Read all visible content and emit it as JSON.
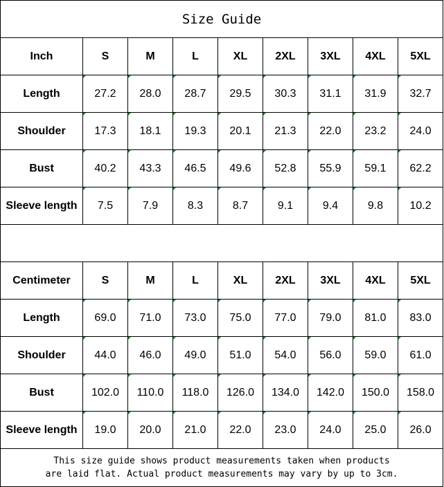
{
  "title": "Size Guide",
  "sizes": [
    "S",
    "M",
    "L",
    "XL",
    "2XL",
    "3XL",
    "4XL",
    "5XL"
  ],
  "inch": {
    "unit_label": "Inch",
    "rows": [
      {
        "label": "Length",
        "values": [
          "27.2",
          "28.0",
          "28.7",
          "29.5",
          "30.3",
          "31.1",
          "31.9",
          "32.7"
        ]
      },
      {
        "label": "Shoulder",
        "values": [
          "17.3",
          "18.1",
          "19.3",
          "20.1",
          "21.3",
          "22.0",
          "23.2",
          "24.0"
        ]
      },
      {
        "label": "Bust",
        "values": [
          "40.2",
          "43.3",
          "46.5",
          "49.6",
          "52.8",
          "55.9",
          "59.1",
          "62.2"
        ]
      },
      {
        "label": "Sleeve length",
        "values": [
          "7.5",
          "7.9",
          "8.3",
          "8.7",
          "9.1",
          "9.4",
          "9.8",
          "10.2"
        ]
      }
    ]
  },
  "cm": {
    "unit_label": "Centimeter",
    "rows": [
      {
        "label": "Length",
        "values": [
          "69.0",
          "71.0",
          "73.0",
          "75.0",
          "77.0",
          "79.0",
          "81.0",
          "83.0"
        ]
      },
      {
        "label": "Shoulder",
        "values": [
          "44.0",
          "46.0",
          "49.0",
          "51.0",
          "54.0",
          "56.0",
          "59.0",
          "61.0"
        ]
      },
      {
        "label": "Bust",
        "values": [
          "102.0",
          "110.0",
          "118.0",
          "126.0",
          "134.0",
          "142.0",
          "150.0",
          "158.0"
        ]
      },
      {
        "label": "Sleeve length",
        "values": [
          "19.0",
          "20.0",
          "21.0",
          "22.0",
          "23.0",
          "24.0",
          "25.0",
          "26.0"
        ]
      }
    ]
  },
  "footer": {
    "line1": "This size guide shows product measurements taken when products",
    "line2": "are laid flat. Actual product measurements may vary by up to 3cm."
  }
}
